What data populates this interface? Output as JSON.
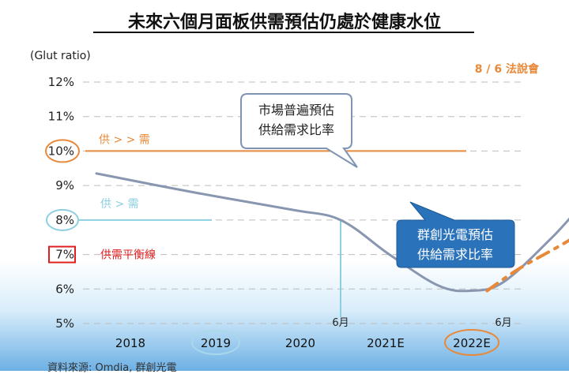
{
  "title": "未來六個月面板供需預估仍處於健康水位",
  "source": "資料來源: Omdia, 群創光電",
  "chart_data": {
    "type": "line",
    "ylabel": "(Glut ratio)",
    "y_ticks": [
      "12%",
      "11%",
      "10%",
      "9%",
      "8%",
      "7%",
      "6%",
      "5%"
    ],
    "y_tick_values": [
      12,
      11,
      10,
      9,
      8,
      7,
      6,
      5
    ],
    "ylim": [
      5,
      12
    ],
    "x_categories": [
      "2018",
      "2019",
      "2020",
      "2021E",
      "2022E"
    ],
    "month_labels": [
      {
        "label": "6月",
        "year": 2019.5
      },
      {
        "label": "6月",
        "year": 2020.5
      },
      {
        "label": "6月",
        "year": 2021.5
      },
      {
        "label": "6月",
        "year": 2022.5
      }
    ],
    "grid": true,
    "series": [
      {
        "name": "市場普遍預估供給需求比率",
        "color": "#8896b0",
        "style": "solid",
        "points": [
          [
            2018.0,
            9.35
          ],
          [
            2018.6,
            8.8
          ],
          [
            2019.2,
            8.3
          ],
          [
            2019.5,
            8.0
          ],
          [
            2019.8,
            7.0
          ],
          [
            2020.1,
            6.1
          ],
          [
            2020.3,
            5.95
          ],
          [
            2020.5,
            6.2
          ],
          [
            2020.8,
            7.5
          ],
          [
            2021.1,
            9.0
          ],
          [
            2021.4,
            9.9
          ],
          [
            2021.7,
            10.35
          ],
          [
            2022.0,
            10.5
          ],
          [
            2022.4,
            10.55
          ],
          [
            2022.6,
            10.65
          ]
        ]
      },
      {
        "name": "群創光電預估供給需求比率",
        "color": "#e8893a",
        "style": "dashdot",
        "points": [
          [
            2020.4,
            5.95
          ],
          [
            2020.6,
            6.6
          ],
          [
            2020.9,
            7.4
          ],
          [
            2021.2,
            8.3
          ],
          [
            2021.5,
            8.8
          ],
          [
            2021.8,
            9.2
          ],
          [
            2022.1,
            9.55
          ],
          [
            2022.4,
            9.85
          ]
        ]
      }
    ],
    "reference_lines": [
      {
        "label": "供 > > 需",
        "value": 10,
        "color": "#e8893a",
        "marker": "10%"
      },
      {
        "label": "供 > 需",
        "value": 8,
        "color": "#8ccfe0",
        "marker": "8%"
      },
      {
        "label": "供需平衡線",
        "value": 7,
        "color": "#e02020",
        "marker": "7%"
      }
    ],
    "guide_lines": [
      {
        "year": 2019.5,
        "from": 8,
        "color": "#8ccfe0"
      },
      {
        "year": 2022.5,
        "from": 10,
        "color": "#e8893a"
      }
    ],
    "annotations": {
      "market_callout": [
        "市場普遍預估",
        "供給需求比率"
      ],
      "innolux_callout": [
        "群創光電預估",
        "供給需求比率"
      ],
      "conference_note": "8 / 6 法說會"
    }
  }
}
